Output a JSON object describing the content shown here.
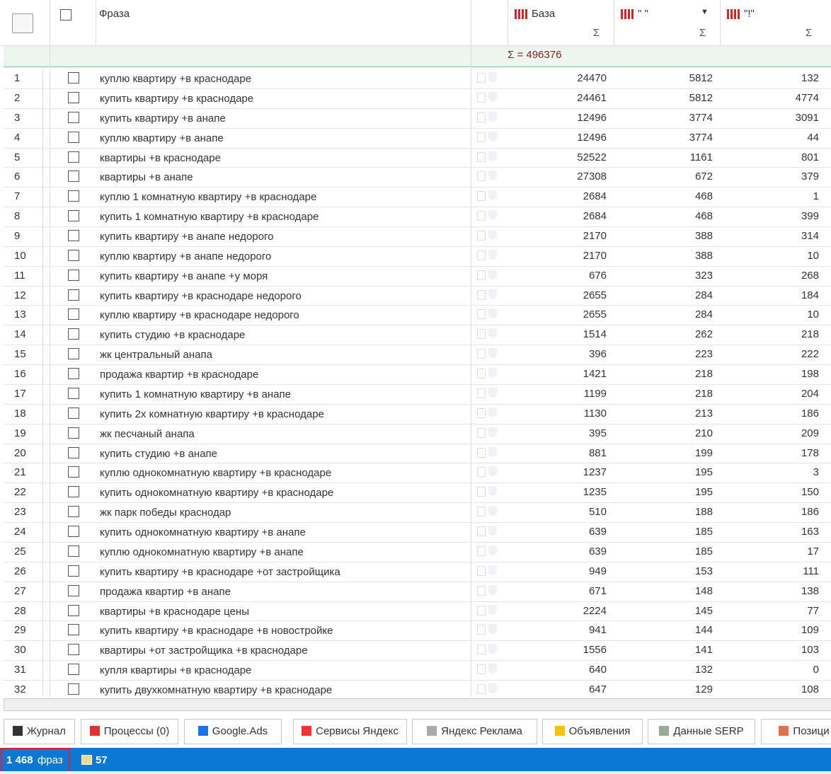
{
  "header": {
    "columns": [
      "Фраза",
      "База",
      "\" \"",
      "\"!\""
    ],
    "sum": "Σ = 496376"
  },
  "rows": [
    {
      "n": 1,
      "phrase": "куплю квартиру +в краснодаре",
      "base": 24470,
      "quoted": 5812,
      "exact": 132
    },
    {
      "n": 2,
      "phrase": "купить квартиру +в краснодаре",
      "base": 24461,
      "quoted": 5812,
      "exact": 4774
    },
    {
      "n": 3,
      "phrase": "купить квартиру +в анапе",
      "base": 12496,
      "quoted": 3774,
      "exact": 3091
    },
    {
      "n": 4,
      "phrase": "куплю квартиру +в анапе",
      "base": 12496,
      "quoted": 3774,
      "exact": 44
    },
    {
      "n": 5,
      "phrase": "квартиры +в краснодаре",
      "base": 52522,
      "quoted": 1161,
      "exact": 801
    },
    {
      "n": 6,
      "phrase": "квартиры +в анапе",
      "base": 27308,
      "quoted": 672,
      "exact": 379
    },
    {
      "n": 7,
      "phrase": "куплю 1 комнатную квартиру +в краснодаре",
      "base": 2684,
      "quoted": 468,
      "exact": 1
    },
    {
      "n": 8,
      "phrase": "купить 1 комнатную квартиру +в краснодаре",
      "base": 2684,
      "quoted": 468,
      "exact": 399
    },
    {
      "n": 9,
      "phrase": "купить квартиру +в анапе недорого",
      "base": 2170,
      "quoted": 388,
      "exact": 314
    },
    {
      "n": 10,
      "phrase": "куплю квартиру +в анапе недорого",
      "base": 2170,
      "quoted": 388,
      "exact": 10
    },
    {
      "n": 11,
      "phrase": "купить квартиру +в анапе +у моря",
      "base": 676,
      "quoted": 323,
      "exact": 268
    },
    {
      "n": 12,
      "phrase": "купить квартиру +в краснодаре недорого",
      "base": 2655,
      "quoted": 284,
      "exact": 184
    },
    {
      "n": 13,
      "phrase": "куплю квартиру +в краснодаре недорого",
      "base": 2655,
      "quoted": 284,
      "exact": 10
    },
    {
      "n": 14,
      "phrase": "купить студию +в краснодаре",
      "base": 1514,
      "quoted": 262,
      "exact": 218
    },
    {
      "n": 15,
      "phrase": "жк центральный анапа",
      "base": 396,
      "quoted": 223,
      "exact": 222
    },
    {
      "n": 16,
      "phrase": "продажа квартир +в краснодаре",
      "base": 1421,
      "quoted": 218,
      "exact": 198
    },
    {
      "n": 17,
      "phrase": "купить 1 комнатную квартиру +в анапе",
      "base": 1199,
      "quoted": 218,
      "exact": 204
    },
    {
      "n": 18,
      "phrase": "купить 2х комнатную квартиру +в краснодаре",
      "base": 1130,
      "quoted": 213,
      "exact": 186
    },
    {
      "n": 19,
      "phrase": "жк песчаный анапа",
      "base": 395,
      "quoted": 210,
      "exact": 209
    },
    {
      "n": 20,
      "phrase": "купить студию +в анапе",
      "base": 881,
      "quoted": 199,
      "exact": 178
    },
    {
      "n": 21,
      "phrase": "куплю однокомнатную квартиру +в краснодаре",
      "base": 1237,
      "quoted": 195,
      "exact": 3
    },
    {
      "n": 22,
      "phrase": "купить однокомнатную квартиру +в краснодаре",
      "base": 1235,
      "quoted": 195,
      "exact": 150
    },
    {
      "n": 23,
      "phrase": "жк парк победы краснодар",
      "base": 510,
      "quoted": 188,
      "exact": 186
    },
    {
      "n": 24,
      "phrase": "купить однокомнатную квартиру +в анапе",
      "base": 639,
      "quoted": 185,
      "exact": 163
    },
    {
      "n": 25,
      "phrase": "куплю однокомнатную квартиру +в анапе",
      "base": 639,
      "quoted": 185,
      "exact": 17
    },
    {
      "n": 26,
      "phrase": "купить квартиру +в краснодаре +от застройщика",
      "base": 949,
      "quoted": 153,
      "exact": 111
    },
    {
      "n": 27,
      "phrase": "продажа квартир +в анапе",
      "base": 671,
      "quoted": 148,
      "exact": 138
    },
    {
      "n": 28,
      "phrase": "квартиры +в краснодаре цены",
      "base": 2224,
      "quoted": 145,
      "exact": 77
    },
    {
      "n": 29,
      "phrase": "купить квартиру +в краснодаре +в новостройке",
      "base": 941,
      "quoted": 144,
      "exact": 109
    },
    {
      "n": 30,
      "phrase": "квартиры +от застройщика +в краснодаре",
      "base": 1556,
      "quoted": 141,
      "exact": 103
    },
    {
      "n": 31,
      "phrase": "купля квартиры +в краснодаре",
      "base": 640,
      "quoted": 132,
      "exact": 0
    },
    {
      "n": 32,
      "phrase": "купить двухкомнатную квартиру +в краснодаре",
      "base": 647,
      "quoted": 129,
      "exact": 108
    }
  ],
  "tabs": [
    "Журнал",
    "Процессы (0)",
    "Google.Ads",
    "Сервисы Яндекс",
    "Яндекс Реклама",
    "Объявления",
    "Данные SERP",
    "Позици"
  ],
  "status": {
    "count": "1 468",
    "unit": "фраз",
    "groups": "57"
  }
}
